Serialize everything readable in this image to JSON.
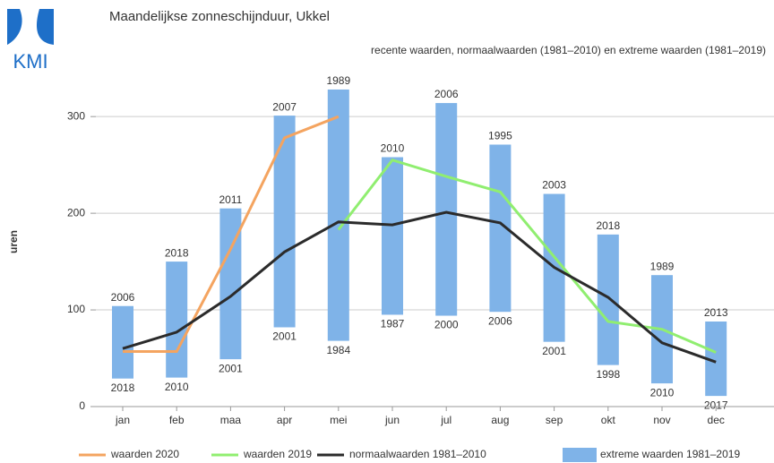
{
  "chart_data": {
    "type": "combo",
    "logo": "KMI",
    "title": "Maandelijkse zonneschijnduur, Ukkel",
    "subtitle": "recente waarden, normaalwaarden (1981–2010) en extreme waarden (1981–2019)",
    "y_label": "uren",
    "categories": [
      "jan",
      "feb",
      "maa",
      "apr",
      "mei",
      "jun",
      "jul",
      "aug",
      "sep",
      "okt",
      "nov",
      "dec"
    ],
    "ylim": [
      0,
      340
    ],
    "yticks": [
      0,
      100,
      200,
      300
    ],
    "grid": true,
    "series": [
      {
        "name": "waarden 2020",
        "type": "line",
        "color": "#f4a460",
        "values": [
          57,
          57,
          163,
          278,
          300,
          null,
          null,
          null,
          null,
          null,
          null,
          null
        ]
      },
      {
        "name": "waarden 2019",
        "type": "line",
        "color": "#90ee70",
        "values": [
          null,
          null,
          null,
          null,
          183,
          255,
          238,
          222,
          155,
          88,
          80,
          56
        ]
      },
      {
        "name": "normaalwaarden 1981–2010",
        "type": "line",
        "color": "#2b2b2b",
        "values": [
          60,
          77,
          114,
          160,
          191,
          188,
          201,
          190,
          144,
          113,
          66,
          46
        ]
      },
      {
        "name": "extreme waarden 1981–2019",
        "type": "range_bar",
        "color": "#7fb3e8",
        "low": [
          29,
          30,
          49,
          82,
          68,
          95,
          94,
          98,
          67,
          43,
          24,
          11
        ],
        "high": [
          104,
          150,
          205,
          301,
          328,
          258,
          314,
          271,
          220,
          178,
          136,
          88
        ],
        "low_labels": [
          "2018",
          "2010",
          "2001",
          "2001",
          "1984",
          "1987",
          "2000",
          "2006",
          "2001",
          "1998",
          "2010",
          "2017"
        ],
        "high_labels": [
          "2006",
          "2018",
          "2011",
          "2007",
          "1989",
          "2010",
          "2006",
          "1995",
          "2003",
          "2018",
          "1989",
          "2013"
        ]
      }
    ]
  }
}
